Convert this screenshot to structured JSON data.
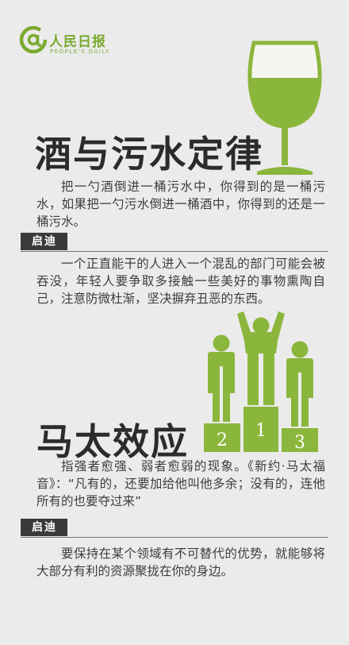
{
  "logo": {
    "at_symbol": "@",
    "name": "人民日报",
    "subtitle": "PEOPLE'S DAILY"
  },
  "section1": {
    "title": "酒与污水定律",
    "body": "把一勺酒倒进一桶污水中，你得到的是一桶污水，如果把一勺污水倒进一桶酒中，你得到的还是一桶污水。",
    "tag": "启迪",
    "insight": "一个正直能干的人进入一个混乱的部门可能会被吞没，年轻人要争取多接触一些美好的事物熏陶自己，注意防微杜渐，坚决摒弃丑恶的东西。"
  },
  "section2": {
    "title": "马太效应",
    "body": "指强者愈强、弱者愈弱的现象。《新约·马太福音》：“凡有的，还要加给他叫他多余；没有的，连他所有的也要夺过来”",
    "tag": "启迪",
    "insight": "要保持在某个领域有不可替代的优势，就能够将大部分有利的资源聚拢在你的身边。"
  },
  "podium": {
    "ranks": [
      "2",
      "1",
      "3"
    ]
  },
  "colors": {
    "green": "#8bb63c",
    "dark_green": "#6f9a2a",
    "background": "#ebebeb",
    "tag_bg": "#3a3a3a"
  },
  "icons": [
    "wine-glass-icon",
    "podium-icon",
    "person-icon"
  ]
}
